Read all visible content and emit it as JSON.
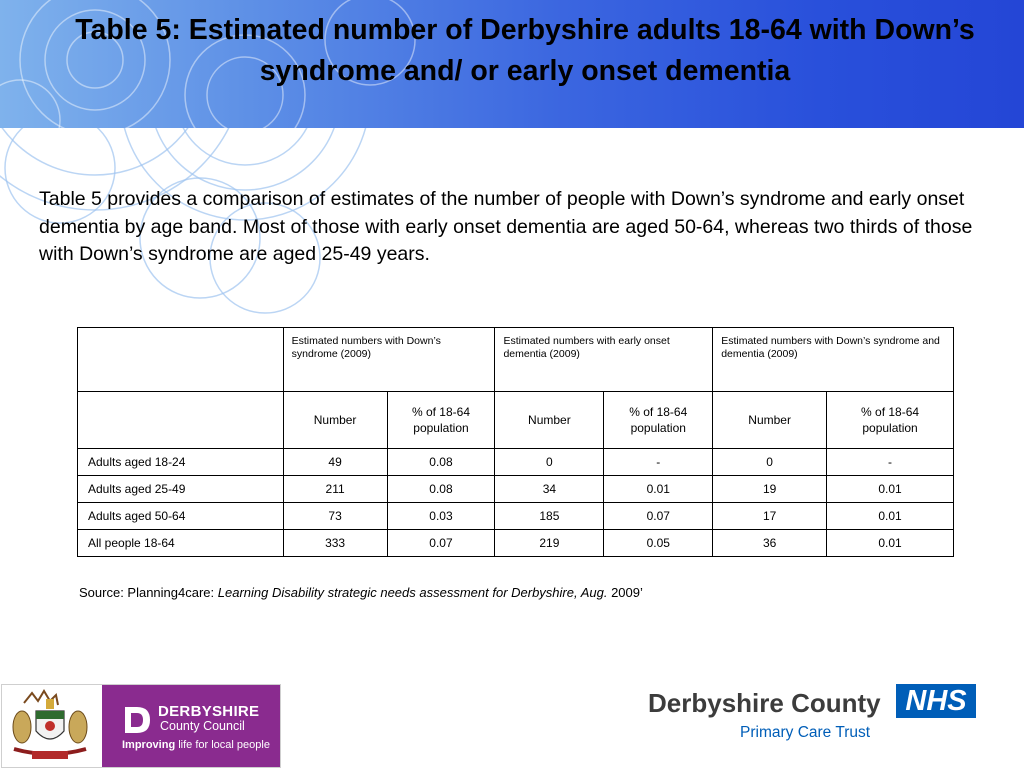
{
  "header": {
    "title": "Table 5: Estimated number of Derbyshire adults 18-64 with Down’s syndrome and/ or early onset dementia"
  },
  "intro": "Table 5 provides a comparison of estimates of the number of people with Down’s syndrome and early onset dementia by age band. Most of those with early onset dementia are aged 50-64, whereas two thirds of those with Down’s syndrome are aged 25-49 years.",
  "table": {
    "group_headers": [
      "Estimated numbers with Down’s syndrome (2009)",
      "Estimated numbers with early onset dementia (2009)",
      "Estimated numbers with Down’s syndrome and dementia (2009)"
    ],
    "sub_headers": [
      "Number",
      "% of 18-64 population",
      "Number",
      "% of 18-64 population",
      "Number",
      "% of 18-64 population"
    ],
    "rows": [
      {
        "label": "Adults aged 18-24",
        "values": [
          "49",
          "0.08",
          "0",
          "-",
          "0",
          "-"
        ]
      },
      {
        "label": "Adults aged 25-49",
        "values": [
          "211",
          "0.08",
          "34",
          "0.01",
          "19",
          "0.01"
        ]
      },
      {
        "label": "Adults aged 50-64",
        "values": [
          "73",
          "0.03",
          "185",
          "0.07",
          "17",
          "0.01"
        ]
      },
      {
        "label": "All people 18-64",
        "values": [
          "333",
          "0.07",
          "219",
          "0.05",
          "36",
          "0.01"
        ]
      }
    ]
  },
  "source": {
    "prefix": "Source: Planning4care: ",
    "title": "Learning Disability strategic needs assessment for Derbyshire, Aug.",
    "suffix": " 2009’"
  },
  "logos": {
    "council": {
      "name": "DERBYSHIRE",
      "subname": "County Council",
      "tagline_bold": "Improving",
      "tagline_rest": " life for local people",
      "color": "#8a2b8f"
    },
    "pct": {
      "name": "Derbyshire County",
      "nhs": "NHS",
      "subname": "Primary Care Trust",
      "color": "#005eb8"
    }
  },
  "colors": {
    "header_gradient_start": "#7fb2ec",
    "header_gradient_end": "#2446d6"
  }
}
